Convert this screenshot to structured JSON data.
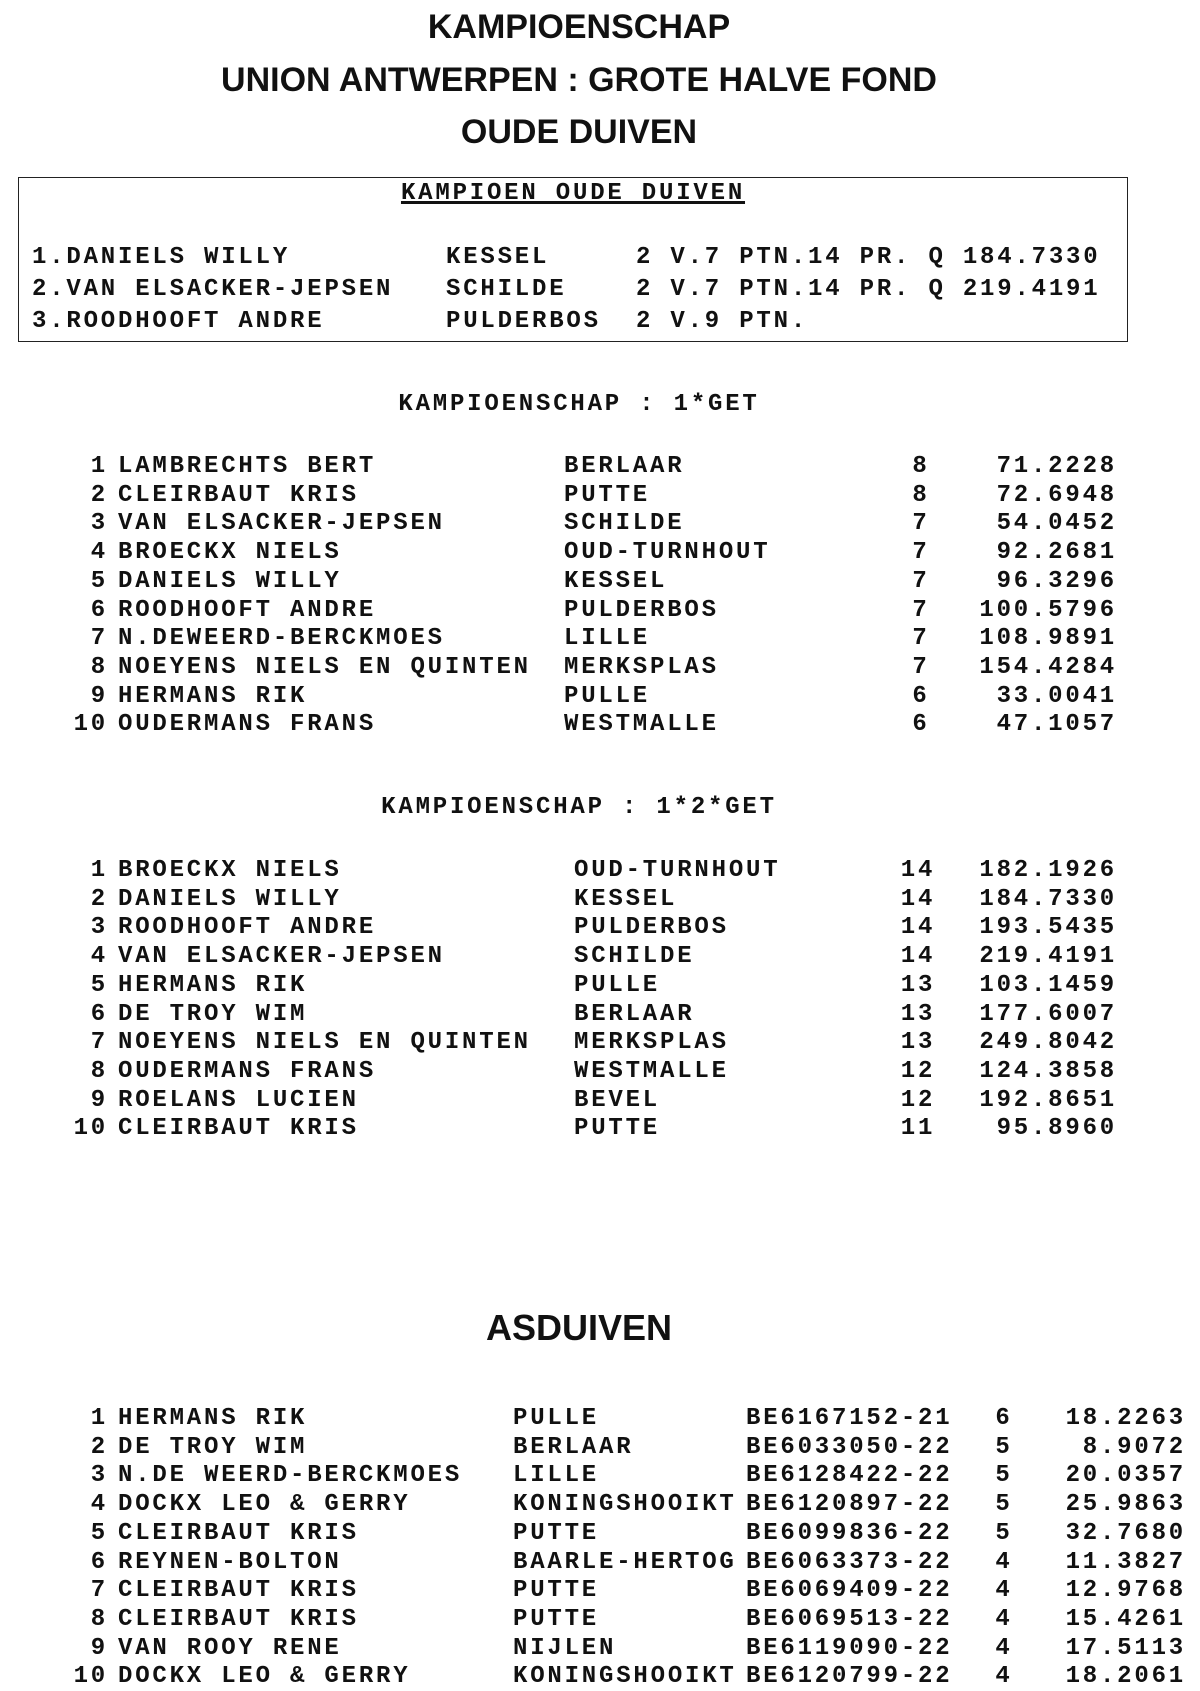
{
  "title": {
    "line1": "KAMPIOENSCHAP",
    "line2": "UNION ANTWERPEN : GROTE HALVE FOND",
    "line3": "OUDE DUIVEN"
  },
  "champion": {
    "heading": "KAMPIOEN OUDE DUIVEN",
    "rows": [
      {
        "name": "1.DANIELS WILLY",
        "town": "KESSEL",
        "detail": "2 V.7 PTN.14 PR. Q 184.7330"
      },
      {
        "name": "2.VAN ELSACKER-JEPSEN",
        "town": "SCHILDE",
        "detail": "2 V.7 PTN.14 PR. Q 219.4191"
      },
      {
        "name": "3.ROODHOOFT ANDRE",
        "town": "PULDERBOS",
        "detail": "2 V.9 PTN."
      }
    ]
  },
  "section1": {
    "heading": "KAMPIOENSCHAP : 1*GET",
    "rows": [
      {
        "rank": "1",
        "name": "LAMBRECHTS BERT",
        "town": "BERLAAR",
        "count": "8",
        "value": "71.2228"
      },
      {
        "rank": "2",
        "name": "CLEIRBAUT KRIS",
        "town": "PUTTE",
        "count": "8",
        "value": "72.6948"
      },
      {
        "rank": "3",
        "name": "VAN ELSACKER-JEPSEN",
        "town": "SCHILDE",
        "count": "7",
        "value": "54.0452"
      },
      {
        "rank": "4",
        "name": "BROECKX NIELS",
        "town": "OUD-TURNHOUT",
        "count": "7",
        "value": "92.2681"
      },
      {
        "rank": "5",
        "name": "DANIELS WILLY",
        "town": "KESSEL",
        "count": "7",
        "value": "96.3296"
      },
      {
        "rank": "6",
        "name": "ROODHOOFT ANDRE",
        "town": "PULDERBOS",
        "count": "7",
        "value": "100.5796"
      },
      {
        "rank": "7",
        "name": "N.DEWEERD-BERCKMOES",
        "town": "LILLE",
        "count": "7",
        "value": "108.9891"
      },
      {
        "rank": "8",
        "name": "NOEYENS NIELS EN QUINTEN",
        "town": "MERKSPLAS",
        "count": "7",
        "value": "154.4284"
      },
      {
        "rank": "9",
        "name": "HERMANS RIK",
        "town": "PULLE",
        "count": "6",
        "value": "33.0041"
      },
      {
        "rank": "10",
        "name": "OUDERMANS FRANS",
        "town": "WESTMALLE",
        "count": "6",
        "value": "47.1057"
      }
    ]
  },
  "section2": {
    "heading": "KAMPIOENSCHAP : 1*2*GET",
    "rows": [
      {
        "rank": "1",
        "name": "BROECKX NIELS",
        "town": "OUD-TURNHOUT",
        "count": "14",
        "value": "182.1926"
      },
      {
        "rank": "2",
        "name": "DANIELS WILLY",
        "town": "KESSEL",
        "count": "14",
        "value": "184.7330"
      },
      {
        "rank": "3",
        "name": "ROODHOOFT ANDRE",
        "town": "PULDERBOS",
        "count": "14",
        "value": "193.5435"
      },
      {
        "rank": "4",
        "name": "VAN ELSACKER-JEPSEN",
        "town": "SCHILDE",
        "count": "14",
        "value": "219.4191"
      },
      {
        "rank": "5",
        "name": "HERMANS RIK",
        "town": "PULLE",
        "count": "13",
        "value": "103.1459"
      },
      {
        "rank": "6",
        "name": "DE TROY WIM",
        "town": "BERLAAR",
        "count": "13",
        "value": "177.6007"
      },
      {
        "rank": "7",
        "name": "NOEYENS NIELS EN QUINTEN",
        "town": "MERKSPLAS",
        "count": "13",
        "value": "249.8042"
      },
      {
        "rank": "8",
        "name": "OUDERMANS FRANS",
        "town": "WESTMALLE",
        "count": "12",
        "value": "124.3858"
      },
      {
        "rank": "9",
        "name": "ROELANS LUCIEN",
        "town": "BEVEL",
        "count": "12",
        "value": "192.8651"
      },
      {
        "rank": "10",
        "name": "CLEIRBAUT KRIS",
        "town": "PUTTE",
        "count": "11",
        "value": "95.8960"
      }
    ]
  },
  "asduiven": {
    "heading": "ASDUIVEN",
    "rows": [
      {
        "rank": "1",
        "name": "HERMANS RIK",
        "town": "PULLE",
        "ring": "BE6167152-21",
        "count": "6",
        "value": "18.2263"
      },
      {
        "rank": "2",
        "name": "DE TROY WIM",
        "town": "BERLAAR",
        "ring": "BE6033050-22",
        "count": "5",
        "value": "8.9072"
      },
      {
        "rank": "3",
        "name": "N.DE WEERD-BERCKMOES",
        "town": "LILLE",
        "ring": "BE6128422-22",
        "count": "5",
        "value": "20.0357"
      },
      {
        "rank": "4",
        "name": "DOCKX LEO & GERRY",
        "town": "KONINGSHOOIKT",
        "ring": "BE6120897-22",
        "count": "5",
        "value": "25.9863"
      },
      {
        "rank": "5",
        "name": "CLEIRBAUT KRIS",
        "town": "PUTTE",
        "ring": "BE6099836-22",
        "count": "5",
        "value": "32.7680"
      },
      {
        "rank": "6",
        "name": "REYNEN-BOLTON",
        "town": "BAARLE-HERTOG",
        "ring": "BE6063373-22",
        "count": "4",
        "value": "11.3827"
      },
      {
        "rank": "7",
        "name": "CLEIRBAUT KRIS",
        "town": "PUTTE",
        "ring": "BE6069409-22",
        "count": "4",
        "value": "12.9768"
      },
      {
        "rank": "8",
        "name": "CLEIRBAUT KRIS",
        "town": "PUTTE",
        "ring": "BE6069513-22",
        "count": "4",
        "value": "15.4261"
      },
      {
        "rank": "9",
        "name": "VAN ROOY RENE",
        "town": "NIJLEN",
        "ring": "BE6119090-22",
        "count": "4",
        "value": "17.5113"
      },
      {
        "rank": "10",
        "name": "DOCKX LEO & GERRY",
        "town": "KONINGSHOOIKT",
        "ring": "BE6120799-22",
        "count": "4",
        "value": "18.2061"
      }
    ]
  }
}
